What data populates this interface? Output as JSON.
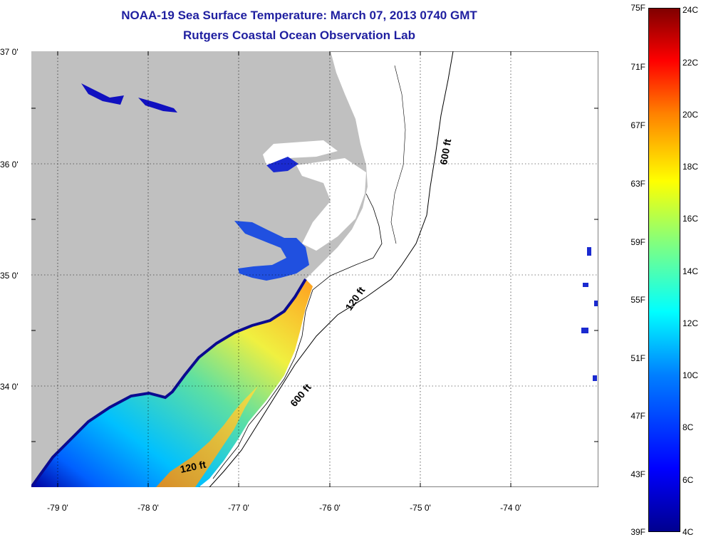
{
  "title": {
    "line1": "NOAA-19 Sea Surface Temperature:  March 07, 2013 0740 GMT",
    "line2": "Rutgers Coastal Ocean Observation Lab"
  },
  "map": {
    "lat_labels": [
      "37 0'",
      "36 0'",
      "35 0'",
      "34 0'"
    ],
    "lon_labels": [
      "-79 0'",
      "-78 0'",
      "-77 0'",
      "-76 0'",
      "-75 0'",
      "-74 0'"
    ],
    "contour_labels": [
      "600 ft",
      "120 ft",
      "600 ft",
      "120 ft"
    ],
    "land_color": "#c0c0c0"
  },
  "colorbar": {
    "fahrenheit_labels": [
      "75F",
      "71F",
      "67F",
      "63F",
      "59F",
      "55F",
      "51F",
      "47F",
      "43F",
      "39F"
    ],
    "celsius_labels": [
      "24C",
      "22C",
      "20C",
      "18C",
      "16C",
      "14C",
      "12C",
      "10C",
      "8C",
      "6C",
      "4C"
    ],
    "colormap": "jet"
  }
}
